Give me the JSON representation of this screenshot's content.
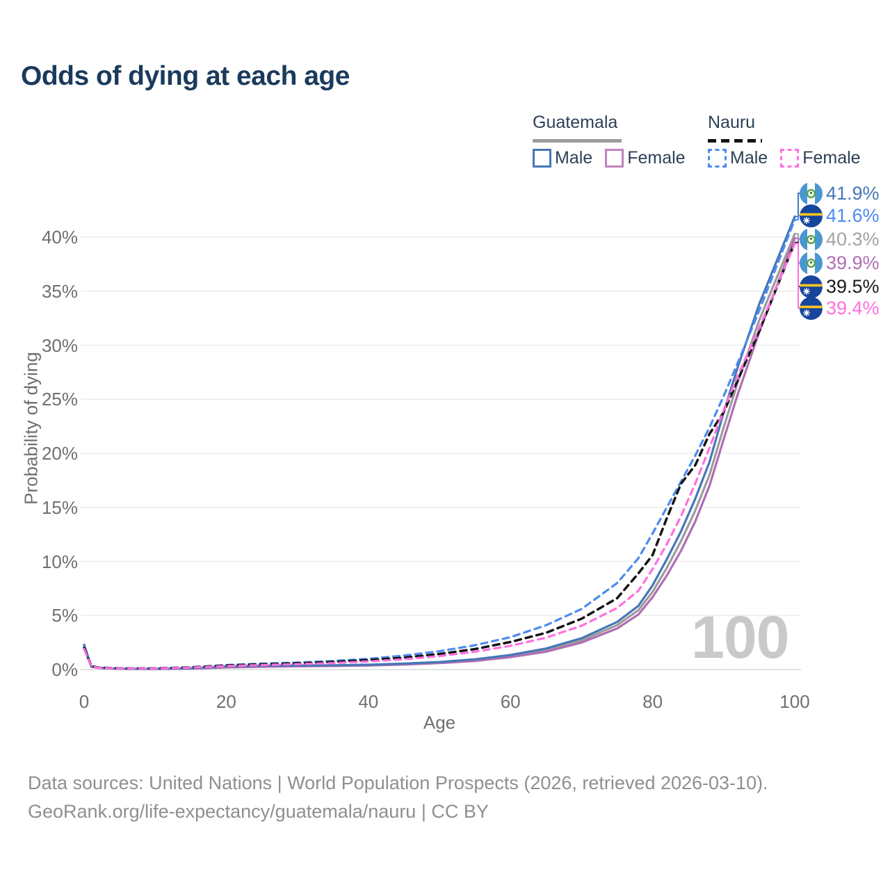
{
  "title": "Odds of dying at each age",
  "legend": {
    "guatemala": {
      "label": "Guatemala",
      "style": "solid",
      "line_color": "#9c9c9c",
      "male": {
        "label": "Male",
        "color": "#4577b5"
      },
      "female": {
        "label": "Female",
        "color": "#c183bd"
      }
    },
    "nauru": {
      "label": "Nauru",
      "style": "dashed",
      "line_color": "#141414",
      "male": {
        "label": "Male",
        "color": "#4d8bf0"
      },
      "female": {
        "label": "Female",
        "color": "#ff70df"
      }
    }
  },
  "watermark": "100",
  "footer": {
    "line1": "Data sources: United Nations | World Population Prospects (2026, retrieved 2026-03-10).",
    "line2": "GeoRank.org/life-expectancy/guatemala/nauru | CC BY"
  },
  "chart_data": {
    "type": "line",
    "title": "Odds of dying at each age",
    "xlabel": "Age",
    "ylabel": "Probability of dying",
    "x_ticks": [
      "0",
      "20",
      "40",
      "60",
      "80",
      "100"
    ],
    "y_ticks": [
      "0%",
      "5%",
      "10%",
      "15%",
      "20%",
      "25%",
      "30%",
      "35%",
      "40%"
    ],
    "xlim": [
      0,
      100
    ],
    "ylim": [
      0,
      45
    ],
    "grid": "horizontal",
    "legend_position": "top-right",
    "ages": [
      0,
      1,
      2,
      5,
      10,
      15,
      20,
      25,
      30,
      35,
      40,
      45,
      50,
      55,
      60,
      65,
      70,
      75,
      78,
      80,
      82,
      84,
      86,
      88,
      90,
      92,
      95,
      100
    ],
    "series": [
      {
        "id": "guatemala-overall",
        "name": "Guatemala",
        "color": "#9c9c9c",
        "dash": "solid",
        "values": [
          2.2,
          0.28,
          0.17,
          0.08,
          0.07,
          0.11,
          0.27,
          0.33,
          0.34,
          0.37,
          0.42,
          0.5,
          0.65,
          0.88,
          1.25,
          1.8,
          2.7,
          4.1,
          5.5,
          7.2,
          9.4,
          11.9,
          14.7,
          18.0,
          22.4,
          26.6,
          32.3,
          40.3
        ]
      },
      {
        "id": "guatemala-female",
        "name": "Guatemala Female",
        "color": "#b16db3",
        "dash": "solid",
        "values": [
          2.0,
          0.25,
          0.15,
          0.07,
          0.06,
          0.09,
          0.2,
          0.26,
          0.3,
          0.33,
          0.38,
          0.46,
          0.6,
          0.8,
          1.15,
          1.65,
          2.5,
          3.8,
          5.1,
          6.7,
          8.7,
          11.0,
          13.7,
          17.0,
          21.3,
          25.5,
          31.2,
          39.9
        ]
      },
      {
        "id": "guatemala-male",
        "name": "Guatemala Male",
        "color": "#4577b5",
        "dash": "solid",
        "values": [
          2.3,
          0.3,
          0.18,
          0.08,
          0.07,
          0.13,
          0.3,
          0.36,
          0.38,
          0.4,
          0.45,
          0.55,
          0.7,
          0.95,
          1.35,
          1.95,
          2.9,
          4.4,
          5.9,
          7.8,
          10.2,
          12.8,
          15.8,
          19.2,
          23.8,
          28.0,
          33.8,
          41.9
        ]
      },
      {
        "id": "nauru-male",
        "name": "Nauru Male",
        "color": "#4d8bf0",
        "dash": "dashed",
        "values": [
          2.1,
          0.35,
          0.2,
          0.12,
          0.11,
          0.22,
          0.42,
          0.55,
          0.65,
          0.8,
          1.0,
          1.3,
          1.7,
          2.25,
          3.0,
          4.1,
          5.6,
          8.0,
          10.3,
          12.6,
          15.0,
          17.4,
          19.8,
          22.4,
          25.3,
          28.4,
          33.2,
          41.6
        ]
      },
      {
        "id": "nauru-overall",
        "name": "Nauru",
        "color": "#141414",
        "dash": "dashed",
        "values": [
          2.0,
          0.32,
          0.18,
          0.11,
          0.1,
          0.2,
          0.38,
          0.48,
          0.58,
          0.7,
          0.88,
          1.1,
          1.45,
          1.9,
          2.55,
          3.4,
          4.7,
          6.6,
          8.9,
          10.6,
          14.0,
          17.2,
          18.9,
          21.8,
          23.8,
          26.8,
          31.3,
          39.5
        ]
      },
      {
        "id": "nauru-female",
        "name": "Nauru Female",
        "color": "#ff70df",
        "dash": "dashed",
        "values": [
          1.9,
          0.3,
          0.17,
          0.1,
          0.09,
          0.18,
          0.33,
          0.42,
          0.5,
          0.6,
          0.75,
          0.95,
          1.25,
          1.65,
          2.2,
          2.95,
          4.05,
          5.7,
          7.3,
          9.3,
          11.6,
          14.2,
          17.2,
          20.5,
          24.0,
          27.2,
          31.6,
          39.4
        ]
      }
    ],
    "end_labels": [
      {
        "series": "guatemala-male",
        "text": "41.9%",
        "flag": "guatemala",
        "color": "#4577b5"
      },
      {
        "series": "nauru-male",
        "text": "41.6%",
        "flag": "nauru",
        "color": "#4d8bf0"
      },
      {
        "series": "guatemala-overall",
        "text": "40.3%",
        "flag": "guatemala",
        "color": "#a3a3a3"
      },
      {
        "series": "guatemala-female",
        "text": "39.9%",
        "flag": "guatemala",
        "color": "#b16db3"
      },
      {
        "series": "nauru-overall",
        "text": "39.5%",
        "flag": "nauru",
        "color": "#1a1a1a"
      },
      {
        "series": "nauru-female",
        "text": "39.4%",
        "flag": "nauru",
        "color": "#ff70df"
      }
    ]
  }
}
